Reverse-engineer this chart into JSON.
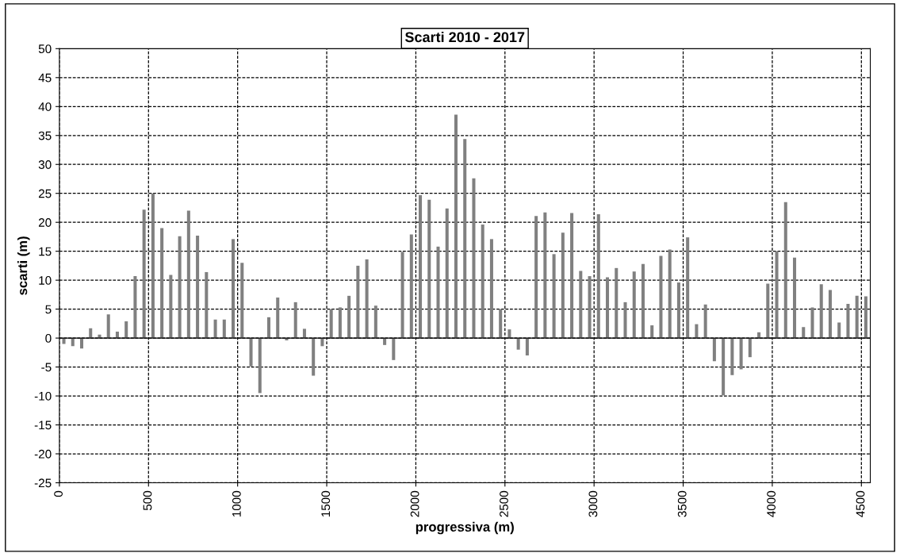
{
  "chart_data": {
    "type": "bar",
    "title": "Scarti 2010 - 2017",
    "xlabel": "progressiva (m)",
    "ylabel": "scarti (m)",
    "x": [
      25,
      75,
      125,
      175,
      225,
      275,
      325,
      375,
      425,
      475,
      525,
      575,
      625,
      675,
      725,
      775,
      825,
      875,
      925,
      975,
      1025,
      1075,
      1125,
      1175,
      1225,
      1275,
      1325,
      1375,
      1425,
      1475,
      1525,
      1575,
      1625,
      1675,
      1725,
      1775,
      1825,
      1875,
      1925,
      1975,
      2025,
      2075,
      2125,
      2175,
      2225,
      2275,
      2325,
      2375,
      2425,
      2475,
      2525,
      2575,
      2625,
      2675,
      2725,
      2775,
      2825,
      2875,
      2925,
      2975,
      3025,
      3075,
      3125,
      3175,
      3225,
      3275,
      3325,
      3375,
      3425,
      3475,
      3525,
      3575,
      3625,
      3675,
      3725,
      3775,
      3825,
      3875,
      3925,
      3975,
      4025,
      4075,
      4125,
      4175,
      4225,
      4275,
      4325,
      4375,
      4425,
      4475,
      4525
    ],
    "values": [
      -1.0,
      -1.4,
      -1.8,
      1.7,
      0.6,
      4.1,
      1.1,
      2.9,
      10.7,
      22.2,
      25.0,
      19.0,
      10.9,
      17.6,
      22.0,
      17.7,
      11.4,
      3.2,
      3.2,
      17.1,
      13.0,
      -4.9,
      -9.5,
      3.6,
      7.0,
      -0.4,
      6.2,
      1.6,
      -6.5,
      -1.4,
      5.0,
      5.3,
      7.3,
      12.5,
      13.6,
      5.6,
      -1.2,
      -3.8,
      14.9,
      17.9,
      24.7,
      23.9,
      15.8,
      22.4,
      38.6,
      34.4,
      27.6,
      19.6,
      17.1,
      5.0,
      1.5,
      -2.0,
      -3.0,
      21.1,
      21.7,
      14.5,
      18.2,
      21.6,
      11.6,
      10.7,
      21.4,
      10.5,
      12.1,
      6.2,
      11.5,
      12.8,
      2.2,
      14.2,
      15.3,
      9.6,
      17.4,
      2.4,
      5.8,
      -4.0,
      -9.9,
      -6.4,
      -5.4,
      -3.3,
      1.0,
      9.4,
      15.0,
      23.5,
      13.9,
      1.9,
      5.3,
      9.3,
      8.3,
      2.7,
      5.9,
      7.3,
      7.2
    ],
    "color": "#808080",
    "xlim": [
      0,
      4550
    ],
    "xticks": [
      0,
      500,
      1000,
      1500,
      2000,
      2500,
      3000,
      3500,
      4000,
      4500
    ],
    "ylim": [
      -25,
      50
    ],
    "yticks": [
      -25,
      -20,
      -15,
      -10,
      -5,
      0,
      5,
      10,
      15,
      20,
      25,
      30,
      35,
      40,
      45,
      50
    ],
    "grid": true
  }
}
